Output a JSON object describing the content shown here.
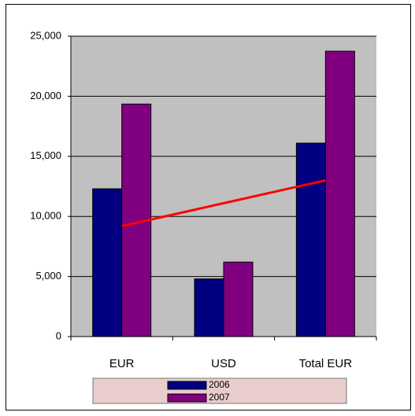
{
  "chart_data": {
    "type": "bar",
    "categories": [
      "EUR",
      "USD",
      "Total EUR"
    ],
    "series": [
      {
        "name": "2006",
        "color": "#000080",
        "values": [
          12300,
          4800,
          16100
        ]
      },
      {
        "name": "2007",
        "color": "#800080",
        "values": [
          19350,
          6200,
          23750
        ]
      }
    ],
    "trendline": {
      "color": "#ff0000",
      "values": [
        9200,
        11100,
        13000
      ]
    },
    "ylim": [
      0,
      25000
    ],
    "yticks": [
      0,
      {
        "value": 5000,
        "label": "5,000"
      },
      {
        "value": 10000,
        "label": "10,000"
      },
      {
        "value": 15000,
        "label": "15,000"
      },
      {
        "value": 20000,
        "label": "20,000"
      },
      {
        "value": 25000,
        "label": "25,000"
      }
    ],
    "grid": true
  }
}
